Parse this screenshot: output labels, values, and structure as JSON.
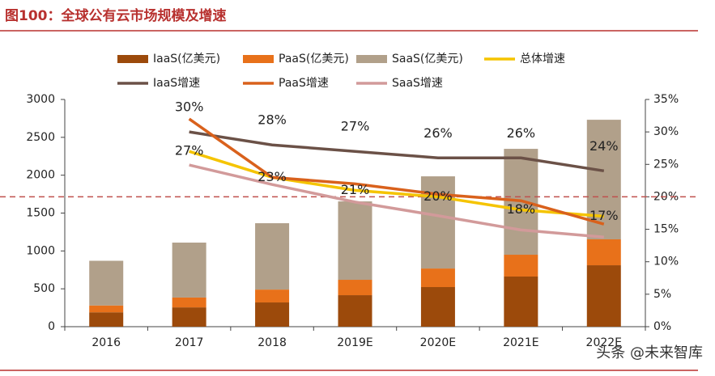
{
  "chart_data": {
    "type": "bar",
    "title": "图100：全球公有云市场规模及增速",
    "watermark": "头条 @未来智库",
    "categories": [
      "2016",
      "2017",
      "2018",
      "2019E",
      "2020E",
      "2021E",
      "2022E"
    ],
    "ylim": [
      0,
      3000
    ],
    "yticks": [
      0,
      500,
      1000,
      1500,
      2000,
      2500,
      3000
    ],
    "y2lim": [
      0,
      35
    ],
    "y2ticks": [
      {
        "value": 0,
        "label": "0%"
      },
      {
        "value": 5,
        "label": "5%"
      },
      {
        "value": 10,
        "label": "10%"
      },
      {
        "value": 15,
        "label": "15%"
      },
      {
        "value": 20,
        "label": "20%"
      },
      {
        "value": 25,
        "label": "25%"
      },
      {
        "value": 30,
        "label": "30%"
      },
      {
        "value": 35,
        "label": "35%"
      }
    ],
    "reference_line": {
      "axis": "y2",
      "value": 20,
      "color": "#c0504d"
    },
    "series": [
      {
        "name": "IaaS(亿美元)",
        "type": "bar",
        "color": "#9c4a0b",
        "values": [
          190,
          255,
          320,
          416,
          523,
          662,
          811
        ]
      },
      {
        "name": "PaaS(亿美元)",
        "type": "bar",
        "color": "#e8711a",
        "values": [
          90,
          130,
          170,
          203,
          245,
          288,
          342
        ]
      },
      {
        "name": "SaaS(亿美元)",
        "type": "bar",
        "color": "#b1a08a",
        "values": [
          590,
          725,
          876,
          1035,
          1217,
          1398,
          1579
        ]
      },
      {
        "name": "总体增速",
        "type": "line",
        "axis": "y2",
        "color": "#f5c400",
        "values": [
          null,
          27,
          23,
          21,
          20,
          18,
          17
        ],
        "value_labels": [
          null,
          "27%",
          "23%",
          "21%",
          "20%",
          "18%",
          "17%"
        ]
      },
      {
        "name": "IaaS增速",
        "type": "line",
        "axis": "y2",
        "color": "#6b5147",
        "values": [
          null,
          30,
          28,
          27,
          26,
          26,
          24
        ],
        "value_labels": [
          null,
          "30%",
          "28%",
          "27%",
          "26%",
          "26%",
          "24%"
        ]
      },
      {
        "name": "PaaS增速",
        "type": "line",
        "axis": "y2",
        "color": "#d9611c",
        "values": [
          null,
          32.0,
          23.0,
          22.0,
          20.4,
          19.4,
          15.8
        ]
      },
      {
        "name": "SaaS增速",
        "type": "line",
        "axis": "y2",
        "color": "#d29a9a",
        "values": [
          null,
          24.9,
          21.9,
          19.2,
          17.1,
          14.9,
          13.8
        ]
      }
    ]
  }
}
